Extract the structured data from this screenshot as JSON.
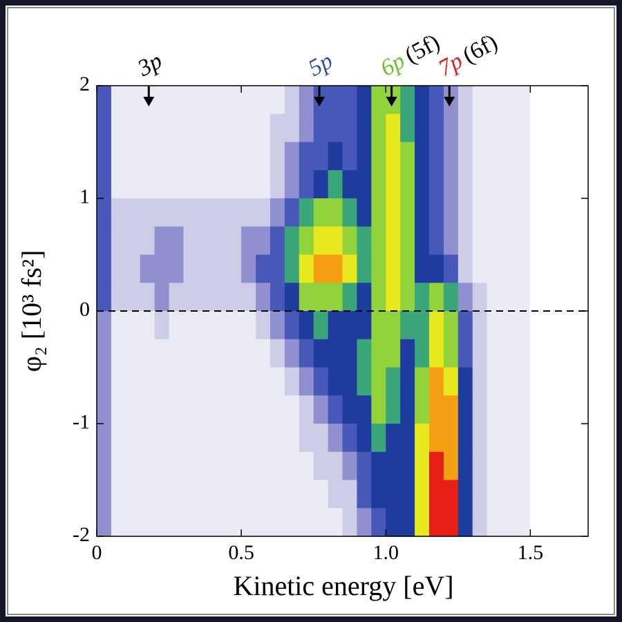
{
  "chart_data": {
    "type": "heatmap",
    "x_label": "Kinetic energy [eV]",
    "y_label": "φ₂ [10³ fs²]",
    "xlim": [
      0,
      1.7
    ],
    "ylim": [
      -2,
      2
    ],
    "xticks": [
      0,
      0.5,
      {
        "value": 1,
        "label": "1.0"
      },
      1.5
    ],
    "yticks": [
      -2,
      -1,
      0,
      1,
      2
    ],
    "hline": 0,
    "colormap": [
      "#ffffff",
      "#ebebf5",
      "#cdcde8",
      "#9090d0",
      "#4858b8",
      "#1e3c9e",
      "#3aa67a",
      "#92d23a",
      "#e8e81e",
      "#f5a014",
      "#e61e14"
    ],
    "annotations": [
      {
        "label": "3p",
        "x": 0.18,
        "color": "#000000"
      },
      {
        "label": "5p",
        "x": 0.77,
        "color": "#3a4ea0"
      },
      {
        "label": "6p",
        "suffix": "(5f)",
        "x": 1.02,
        "color": "#6cc02c"
      },
      {
        "label": "7p",
        "suffix": "(6f)",
        "x": 1.22,
        "color": "#e02020"
      }
    ],
    "x_edges": [
      0,
      0.05,
      0.1,
      0.15,
      0.2,
      0.25,
      0.3,
      0.35,
      0.4,
      0.45,
      0.5,
      0.55,
      0.6,
      0.65,
      0.7,
      0.75,
      0.8,
      0.85,
      0.9,
      0.95,
      1.0,
      1.05,
      1.1,
      1.15,
      1.2,
      1.25,
      1.3,
      1.35,
      1.4,
      1.45,
      1.5,
      1.55,
      1.6,
      1.65,
      1.7
    ],
    "y_edges": [
      2,
      1.75,
      1.5,
      1.25,
      1,
      0.75,
      0.5,
      0.25,
      0,
      -0.25,
      -0.5,
      -0.75,
      -1,
      -1.25,
      -1.5,
      -1.75,
      -2
    ],
    "z": [
      [
        4,
        1,
        1,
        1,
        1,
        1,
        1,
        1,
        1,
        1,
        1,
        1,
        1,
        2,
        3,
        4,
        4,
        4,
        5,
        7,
        7,
        6,
        5,
        4,
        3,
        2,
        1,
        1,
        1,
        1,
        0,
        0,
        0,
        0
      ],
      [
        4,
        1,
        1,
        1,
        1,
        1,
        1,
        1,
        1,
        1,
        1,
        1,
        2,
        2,
        3,
        4,
        4,
        4,
        5,
        7,
        8,
        6,
        5,
        4,
        3,
        2,
        1,
        1,
        1,
        1,
        0,
        0,
        0,
        0
      ],
      [
        4,
        1,
        1,
        1,
        1,
        1,
        1,
        1,
        1,
        1,
        1,
        1,
        2,
        3,
        4,
        4,
        5,
        4,
        5,
        7,
        8,
        7,
        5,
        4,
        3,
        2,
        1,
        1,
        1,
        1,
        0,
        0,
        0,
        0
      ],
      [
        4,
        1,
        1,
        1,
        1,
        1,
        1,
        1,
        1,
        1,
        1,
        1,
        2,
        3,
        4,
        5,
        6,
        5,
        5,
        7,
        8,
        7,
        5,
        4,
        3,
        2,
        1,
        1,
        1,
        1,
        0,
        0,
        0,
        0
      ],
      [
        4,
        2,
        2,
        2,
        2,
        2,
        2,
        2,
        2,
        2,
        2,
        2,
        3,
        4,
        6,
        7,
        7,
        6,
        5,
        7,
        8,
        7,
        5,
        4,
        3,
        2,
        1,
        1,
        1,
        1,
        0,
        0,
        0,
        0
      ],
      [
        4,
        2,
        2,
        2,
        3,
        3,
        2,
        2,
        2,
        2,
        3,
        3,
        4,
        6,
        7,
        8,
        8,
        7,
        6,
        7,
        8,
        7,
        5,
        4,
        3,
        2,
        1,
        1,
        1,
        1,
        0,
        0,
        0,
        0
      ],
      [
        4,
        2,
        2,
        3,
        3,
        3,
        2,
        2,
        2,
        2,
        3,
        4,
        4,
        6,
        8,
        9,
        9,
        8,
        6,
        7,
        8,
        7,
        5,
        5,
        4,
        2,
        1,
        1,
        1,
        1,
        0,
        0,
        0,
        0
      ],
      [
        4,
        2,
        2,
        2,
        3,
        2,
        2,
        2,
        2,
        2,
        2,
        3,
        4,
        5,
        7,
        7,
        7,
        6,
        5,
        7,
        8,
        7,
        6,
        7,
        6,
        3,
        2,
        1,
        1,
        1,
        0,
        0,
        0,
        0
      ],
      [
        3,
        1,
        1,
        1,
        2,
        1,
        1,
        1,
        1,
        1,
        1,
        2,
        3,
        4,
        5,
        6,
        5,
        5,
        5,
        7,
        7,
        6,
        6,
        8,
        7,
        4,
        2,
        1,
        1,
        1,
        0,
        0,
        0,
        0
      ],
      [
        3,
        1,
        1,
        1,
        1,
        1,
        1,
        1,
        1,
        1,
        1,
        1,
        2,
        3,
        4,
        5,
        5,
        5,
        6,
        7,
        7,
        5,
        6,
        8,
        7,
        4,
        2,
        1,
        1,
        1,
        0,
        0,
        0,
        0
      ],
      [
        3,
        1,
        1,
        1,
        1,
        1,
        1,
        1,
        1,
        1,
        1,
        1,
        1,
        2,
        3,
        4,
        5,
        5,
        6,
        7,
        6,
        5,
        7,
        9,
        8,
        5,
        2,
        1,
        1,
        1,
        0,
        0,
        0,
        0
      ],
      [
        3,
        1,
        1,
        1,
        1,
        1,
        1,
        1,
        1,
        1,
        1,
        1,
        1,
        1,
        2,
        3,
        4,
        5,
        5,
        7,
        6,
        5,
        7,
        9,
        9,
        5,
        2,
        1,
        1,
        1,
        0,
        0,
        0,
        0
      ],
      [
        3,
        1,
        1,
        1,
        1,
        1,
        1,
        1,
        1,
        1,
        1,
        1,
        1,
        1,
        2,
        2,
        3,
        4,
        5,
        6,
        5,
        5,
        8,
        9,
        9,
        5,
        2,
        1,
        1,
        1,
        0,
        0,
        0,
        0
      ],
      [
        3,
        1,
        1,
        1,
        1,
        1,
        1,
        1,
        1,
        1,
        1,
        1,
        1,
        1,
        1,
        2,
        2,
        3,
        4,
        5,
        5,
        5,
        8,
        10,
        9,
        5,
        2,
        1,
        1,
        1,
        0,
        0,
        0,
        0
      ],
      [
        3,
        1,
        1,
        1,
        1,
        1,
        1,
        1,
        1,
        1,
        1,
        1,
        1,
        1,
        1,
        1,
        2,
        2,
        4,
        5,
        5,
        5,
        8,
        10,
        10,
        5,
        2,
        1,
        1,
        1,
        0,
        0,
        0,
        0
      ],
      [
        3,
        1,
        1,
        1,
        1,
        1,
        1,
        1,
        1,
        1,
        1,
        1,
        1,
        1,
        1,
        1,
        1,
        2,
        3,
        4,
        5,
        5,
        8,
        10,
        10,
        5,
        2,
        1,
        1,
        1,
        0,
        0,
        0,
        0
      ]
    ]
  }
}
